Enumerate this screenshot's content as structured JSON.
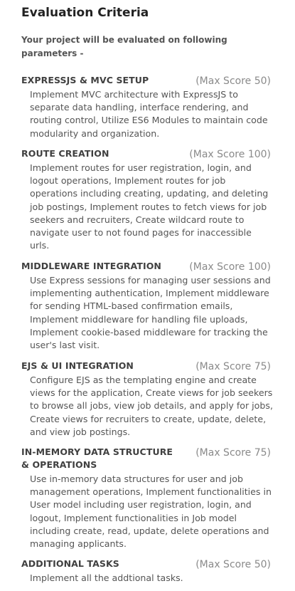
{
  "title": "Evaluation Criteria",
  "intro": "Your project will be evaluated on following parameters -",
  "criteria": [
    {
      "name": "EXPRESSJS & MVC SETUP",
      "score": "(Max Score 50)",
      "description": "Implement MVC architecture with ExpressJS to separate data handling, interface rendering, and routing control, Utilize ES6 Modules to maintain code modularity and organization."
    },
    {
      "name": "ROUTE CREATION",
      "score": "(Max Score 100)",
      "description": "Implement routes for user registration, login, and logout operations, Implement routes for job operations including creating, updating, and deleting job postings, Implement routes to fetch views for job seekers and recruiters, Create wildcard route to navigate user to not found pages for inaccessible urls."
    },
    {
      "name": "MIDDLEWARE INTEGRATION",
      "score": "(Max Score 100)",
      "description": "Use Express sessions for managing user sessions and implementing authentication, Implement middleware for sending HTML-based confirmation emails, Implement middleware for handling file uploads, Implement cookie-based middleware for tracking the user's last visit."
    },
    {
      "name": "EJS & UI INTEGRATION",
      "score": "(Max Score 75)",
      "description": "Configure EJS as the templating engine and create views for the application, Create views for job seekers to browse all jobs, view job details, and apply for jobs, Create views for recruiters to create, update, delete, and view job postings."
    },
    {
      "name": "IN-MEMORY DATA STRUCTURE & OPERATIONS",
      "score": "(Max Score 75)",
      "description": "Use in-memory data structures for user and job management operations, Implement functionalities in User model including user registration, login, and logout, Implement functionalities in Job model including create, read, update, delete operations and managing applicants."
    },
    {
      "name": "ADDITIONAL TASKS",
      "score": "(Max Score 50)",
      "description": "Implement all the addtional tasks."
    }
  ]
}
